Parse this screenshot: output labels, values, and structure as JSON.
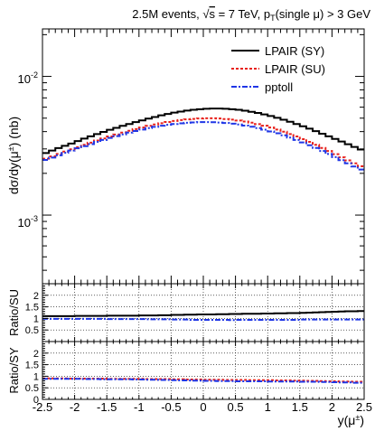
{
  "chart_data": {
    "type": "line",
    "title": "2.5M events, √s = 7 TeV, pₜ(single μ) > 3 GeV",
    "title_parts": {
      "prefix": "2.5M events, ",
      "sqrt": "√",
      "s": "s",
      "eq": " = 7 TeV, p",
      "sub": "T",
      "mid": "(single ",
      "mu": "μ",
      "suffix": ") > 3 GeV"
    },
    "xlabel": "y(μ±)",
    "xlabel_parts": {
      "main": "y(μ",
      "sup": "±",
      "close": ")"
    },
    "ylabel": "dσ/dy(μ±) (nb)",
    "ylabel_parts": {
      "main": "dσ/dy(μ",
      "sup": "±",
      "close": ") (nb)"
    },
    "xlim": [
      -2.5,
      2.5
    ],
    "ylim": [
      0.00032,
      0.022
    ],
    "yscale": "log",
    "grid": false,
    "legend_position": "top-right",
    "x_ticks": [
      "-2.5",
      "-2",
      "-1.5",
      "-1",
      "-0.5",
      "0",
      "0.5",
      "1",
      "1.5",
      "2",
      "2.5"
    ],
    "y_ticks": [
      {
        "base": "10",
        "exp": "-2",
        "value": 0.01
      },
      {
        "base": "10",
        "exp": "-3",
        "value": 0.001
      }
    ],
    "x_bin_edges": [
      -2.5,
      -2.4,
      -2.3,
      -2.2,
      -2.1,
      -2.0,
      -1.9,
      -1.8,
      -1.7,
      -1.6,
      -1.5,
      -1.4,
      -1.3,
      -1.2,
      -1.1,
      -1.0,
      -0.9,
      -0.8,
      -0.7,
      -0.6,
      -0.5,
      -0.4,
      -0.3,
      -0.2,
      -0.1,
      0.0,
      0.1,
      0.2,
      0.3,
      0.4,
      0.5,
      0.6,
      0.7,
      0.8,
      0.9,
      1.0,
      1.1,
      1.2,
      1.3,
      1.4,
      1.5,
      1.6,
      1.7,
      1.8,
      1.9,
      2.0,
      2.1,
      2.2,
      2.3,
      2.4,
      2.5
    ],
    "series": [
      {
        "name": "LPAIR (SY)",
        "color": "#000000",
        "dash": "solid",
        "values": [
          0.0028,
          0.00292,
          0.00304,
          0.00316,
          0.00328,
          0.00342,
          0.00356,
          0.0037,
          0.00384,
          0.00398,
          0.00412,
          0.00426,
          0.0044,
          0.00454,
          0.00468,
          0.00482,
          0.00496,
          0.0051,
          0.00524,
          0.00536,
          0.00548,
          0.00558,
          0.00567,
          0.00574,
          0.0058,
          0.00584,
          0.00586,
          0.00586,
          0.00584,
          0.0058,
          0.00574,
          0.00566,
          0.00556,
          0.00545,
          0.00532,
          0.00518,
          0.00503,
          0.00487,
          0.00471,
          0.00454,
          0.00437,
          0.0042,
          0.00403,
          0.00386,
          0.0037,
          0.00354,
          0.00339,
          0.00324,
          0.0031,
          0.00297
        ]
      },
      {
        "name": "LPAIR (SU)",
        "color": "#e8211b",
        "dash": "3,2",
        "values": [
          0.00255,
          0.00265,
          0.00276,
          0.00287,
          0.00298,
          0.00309,
          0.00321,
          0.00333,
          0.00345,
          0.00357,
          0.00369,
          0.00381,
          0.00393,
          0.00405,
          0.00417,
          0.00428,
          0.0044,
          0.0045,
          0.0046,
          0.00469,
          0.00477,
          0.00484,
          0.0049,
          0.00494,
          0.00497,
          0.00499,
          0.00499,
          0.00497,
          0.00493,
          0.00488,
          0.00481,
          0.00473,
          0.00464,
          0.00453,
          0.00441,
          0.00428,
          0.00414,
          0.00399,
          0.00384,
          0.00369,
          0.00353,
          0.00337,
          0.00321,
          0.00305,
          0.0029,
          0.00275,
          0.00261,
          0.00248,
          0.00236,
          0.00225
        ]
      },
      {
        "name": "pptoll",
        "color": "#1f36e6",
        "dash": "6,2,2,2",
        "values": [
          0.0025,
          0.0026,
          0.0027,
          0.00281,
          0.00292,
          0.00303,
          0.00314,
          0.00325,
          0.00337,
          0.00348,
          0.0036,
          0.00371,
          0.00382,
          0.00393,
          0.00404,
          0.00414,
          0.00424,
          0.00433,
          0.00441,
          0.00448,
          0.00454,
          0.00459,
          0.00463,
          0.00466,
          0.00468,
          0.00468,
          0.00467,
          0.00465,
          0.00461,
          0.00456,
          0.0045,
          0.00442,
          0.00434,
          0.00424,
          0.00413,
          0.00401,
          0.00389,
          0.00376,
          0.00362,
          0.00348,
          0.00334,
          0.00319,
          0.00305,
          0.0029,
          0.00276,
          0.00262,
          0.00249,
          0.00236,
          0.00224,
          0.00213
        ]
      }
    ],
    "ratio_panels": [
      {
        "ylabel": "Ratio/SU",
        "ylim": [
          0,
          2.5
        ],
        "y_ticks": [
          "0.5",
          "1",
          "1.5",
          "2"
        ],
        "grid": true,
        "series": [
          {
            "name": "LPAIR (SY)",
            "color": "#000000",
            "dash": "solid",
            "values": [
              1.1,
              1.1,
              1.1,
              1.1,
              1.1,
              1.11,
              1.11,
              1.11,
              1.11,
              1.11,
              1.12,
              1.12,
              1.12,
              1.12,
              1.12,
              1.13,
              1.13,
              1.13,
              1.14,
              1.14,
              1.15,
              1.15,
              1.16,
              1.16,
              1.17,
              1.17,
              1.17,
              1.18,
              1.18,
              1.19,
              1.19,
              1.2,
              1.2,
              1.2,
              1.21,
              1.21,
              1.22,
              1.22,
              1.23,
              1.23,
              1.24,
              1.25,
              1.26,
              1.27,
              1.28,
              1.29,
              1.3,
              1.31,
              1.31,
              1.32
            ]
          },
          {
            "name": "pptoll",
            "color": "#1f36e6",
            "dash": "6,2,2,2",
            "values": [
              0.98,
              0.98,
              0.98,
              0.98,
              0.98,
              0.98,
              0.98,
              0.98,
              0.98,
              0.98,
              0.97,
              0.97,
              0.97,
              0.97,
              0.97,
              0.97,
              0.96,
              0.96,
              0.96,
              0.96,
              0.95,
              0.95,
              0.95,
              0.94,
              0.94,
              0.94,
              0.94,
              0.94,
              0.94,
              0.93,
              0.94,
              0.94,
              0.94,
              0.94,
              0.94,
              0.94,
              0.94,
              0.94,
              0.94,
              0.94,
              0.95,
              0.95,
              0.95,
              0.95,
              0.95,
              0.95,
              0.95,
              0.95,
              0.95,
              0.95
            ]
          }
        ]
      },
      {
        "ylabel": "Ratio/SY",
        "ylim": [
          0,
          2.5
        ],
        "y_ticks": [
          "0",
          "0.5",
          "1",
          "1.5",
          "2"
        ],
        "grid": true,
        "series": [
          {
            "name": "LPAIR (SU)",
            "color": "#e8211b",
            "dash": "3,2",
            "values": [
              0.91,
              0.91,
              0.91,
              0.91,
              0.9,
              0.9,
              0.9,
              0.9,
              0.9,
              0.9,
              0.89,
              0.89,
              0.89,
              0.89,
              0.89,
              0.89,
              0.88,
              0.88,
              0.88,
              0.88,
              0.87,
              0.87,
              0.86,
              0.86,
              0.86,
              0.85,
              0.85,
              0.85,
              0.84,
              0.84,
              0.84,
              0.84,
              0.83,
              0.83,
              0.83,
              0.83,
              0.82,
              0.82,
              0.82,
              0.81,
              0.81,
              0.8,
              0.8,
              0.79,
              0.78,
              0.78,
              0.77,
              0.77,
              0.76,
              0.76
            ]
          },
          {
            "name": "pptoll",
            "color": "#1f36e6",
            "dash": "6,2,2,2",
            "values": [
              0.89,
              0.89,
              0.89,
              0.89,
              0.89,
              0.89,
              0.88,
              0.88,
              0.88,
              0.87,
              0.87,
              0.87,
              0.87,
              0.87,
              0.86,
              0.86,
              0.85,
              0.85,
              0.84,
              0.84,
              0.83,
              0.82,
              0.82,
              0.81,
              0.81,
              0.8,
              0.8,
              0.79,
              0.79,
              0.79,
              0.78,
              0.78,
              0.78,
              0.78,
              0.78,
              0.77,
              0.77,
              0.77,
              0.77,
              0.77,
              0.76,
              0.76,
              0.76,
              0.75,
              0.75,
              0.74,
              0.73,
              0.73,
              0.72,
              0.72
            ]
          }
        ]
      }
    ]
  }
}
